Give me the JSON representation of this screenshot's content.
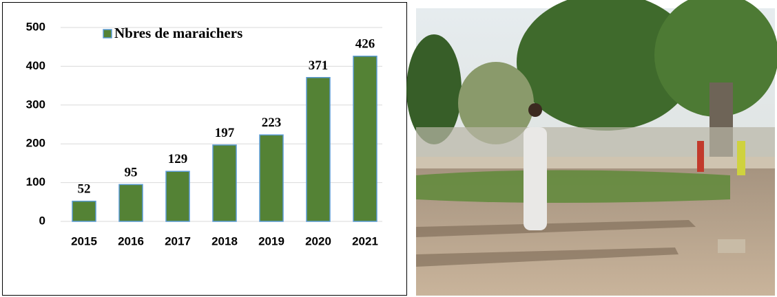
{
  "chart_data": {
    "type": "bar",
    "categories": [
      "2015",
      "2016",
      "2017",
      "2018",
      "2019",
      "2020",
      "2021"
    ],
    "series": [
      {
        "name": "Nbres de maraichers",
        "color": "#548235",
        "edgecolor": "#5b9bd5",
        "values": [
          52,
          95,
          129,
          197,
          223,
          371,
          426
        ]
      }
    ],
    "ylim": [
      0,
      500
    ],
    "yticks": [
      0,
      100,
      200,
      300,
      400,
      500
    ],
    "grid": true,
    "legend": "top"
  }
}
